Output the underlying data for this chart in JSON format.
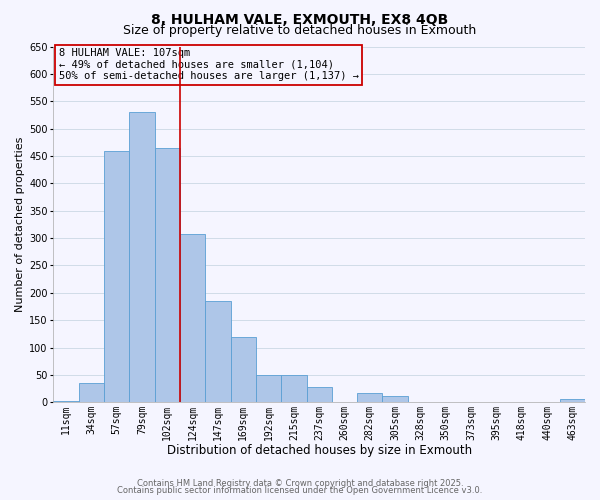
{
  "title": "8, HULHAM VALE, EXMOUTH, EX8 4QB",
  "subtitle": "Size of property relative to detached houses in Exmouth",
  "xlabel": "Distribution of detached houses by size in Exmouth",
  "ylabel": "Number of detached properties",
  "categories": [
    "11sqm",
    "34sqm",
    "57sqm",
    "79sqm",
    "102sqm",
    "124sqm",
    "147sqm",
    "169sqm",
    "192sqm",
    "215sqm",
    "237sqm",
    "260sqm",
    "282sqm",
    "305sqm",
    "328sqm",
    "350sqm",
    "373sqm",
    "395sqm",
    "418sqm",
    "440sqm",
    "463sqm"
  ],
  "values": [
    3,
    35,
    460,
    530,
    465,
    308,
    185,
    120,
    50,
    50,
    28,
    0,
    17,
    12,
    0,
    0,
    0,
    0,
    0,
    0,
    6
  ],
  "bar_color": "#aec6e8",
  "bar_edge_color": "#5a9fd4",
  "vline_x": 5.0,
  "vline_color": "#cc0000",
  "annotation_title": "8 HULHAM VALE: 107sqm",
  "annotation_line2": "← 49% of detached houses are smaller (1,104)",
  "annotation_line3": "50% of semi-detached houses are larger (1,137) →",
  "annotation_box_color": "#cc0000",
  "ylim": [
    0,
    650
  ],
  "yticks": [
    0,
    50,
    100,
    150,
    200,
    250,
    300,
    350,
    400,
    450,
    500,
    550,
    600,
    650
  ],
  "grid_color": "#d0dce8",
  "footer1": "Contains HM Land Registry data © Crown copyright and database right 2025.",
  "footer2": "Contains public sector information licensed under the Open Government Licence v3.0.",
  "background_color": "#f5f5ff",
  "title_fontsize": 10,
  "subtitle_fontsize": 9,
  "xlabel_fontsize": 8.5,
  "ylabel_fontsize": 8,
  "tick_fontsize": 7,
  "annotation_fontsize": 7.5,
  "footer_fontsize": 6
}
